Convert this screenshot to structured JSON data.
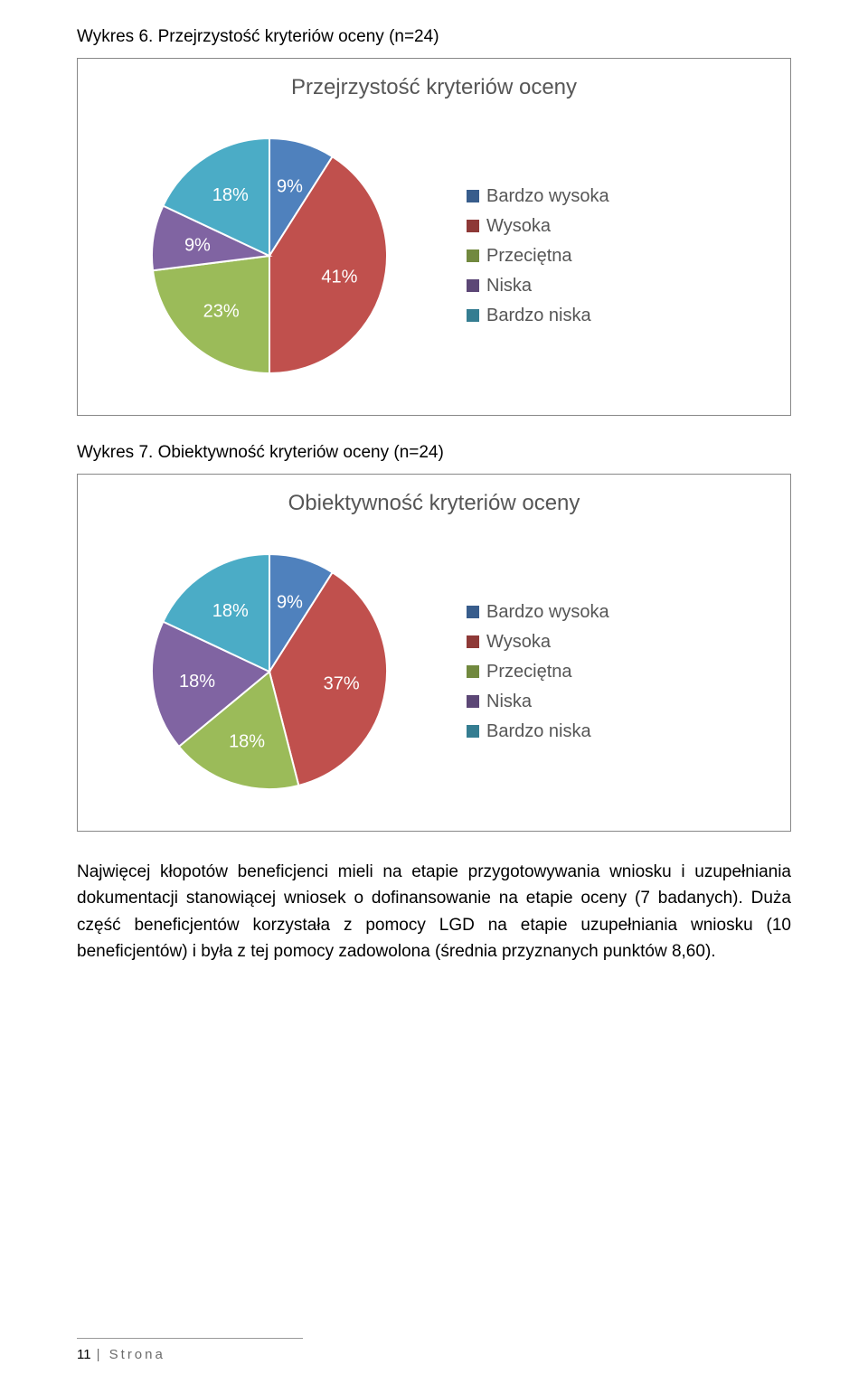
{
  "caption1": "Wykres 6. Przejrzystość kryteriów oceny (n=24)",
  "caption2": "Wykres 7. Obiektywność kryteriów oceny (n=24)",
  "chart1": {
    "title": "Przejrzystość kryteriów oceny",
    "type": "pie",
    "slices": [
      {
        "label": "9%",
        "value": 9,
        "color": "#4f81bd",
        "marker": "#385d8c"
      },
      {
        "label": "41%",
        "value": 41,
        "color": "#c0504d",
        "marker": "#8e3937"
      },
      {
        "label": "23%",
        "value": 23,
        "color": "#9bbb59",
        "marker": "#71893f"
      },
      {
        "label": "9%",
        "value": 9,
        "color": "#8064a2",
        "marker": "#5c4776"
      },
      {
        "label": "18%",
        "value": 18,
        "color": "#4bacc6",
        "marker": "#357d91"
      }
    ],
    "legend": [
      "Bardzo wysoka",
      "Wysoka",
      "Przeciętna",
      "Niska",
      "Bardzo niska"
    ]
  },
  "chart2": {
    "title": "Obiektywność kryteriów oceny",
    "type": "pie",
    "slices": [
      {
        "label": "9%",
        "value": 9,
        "color": "#4f81bd",
        "marker": "#385d8c"
      },
      {
        "label": "37%",
        "value": 37,
        "color": "#c0504d",
        "marker": "#8e3937"
      },
      {
        "label": "18%",
        "value": 18,
        "color": "#9bbb59",
        "marker": "#71893f"
      },
      {
        "label": "18%",
        "value": 18,
        "color": "#8064a2",
        "marker": "#5c4776"
      },
      {
        "label": "18%",
        "value": 18,
        "color": "#4bacc6",
        "marker": "#357d91"
      }
    ],
    "legend": [
      "Bardzo wysoka",
      "Wysoka",
      "Przeciętna",
      "Niska",
      "Bardzo niska"
    ]
  },
  "paragraph": "Najwięcej kłopotów beneficjenci mieli na etapie przygotowywania wniosku i uzupełniania dokumentacji stanowiącej wniosek o dofinansowanie na etapie oceny (7 badanych). Duża część beneficjentów korzystała z pomocy LGD na etapie uzupełniania wniosku (10 beneficjentów) i była z tej pomocy zadowolona (średnia przyznanych punktów 8,60).",
  "footer_page": "11",
  "footer_text": "| Strona"
}
